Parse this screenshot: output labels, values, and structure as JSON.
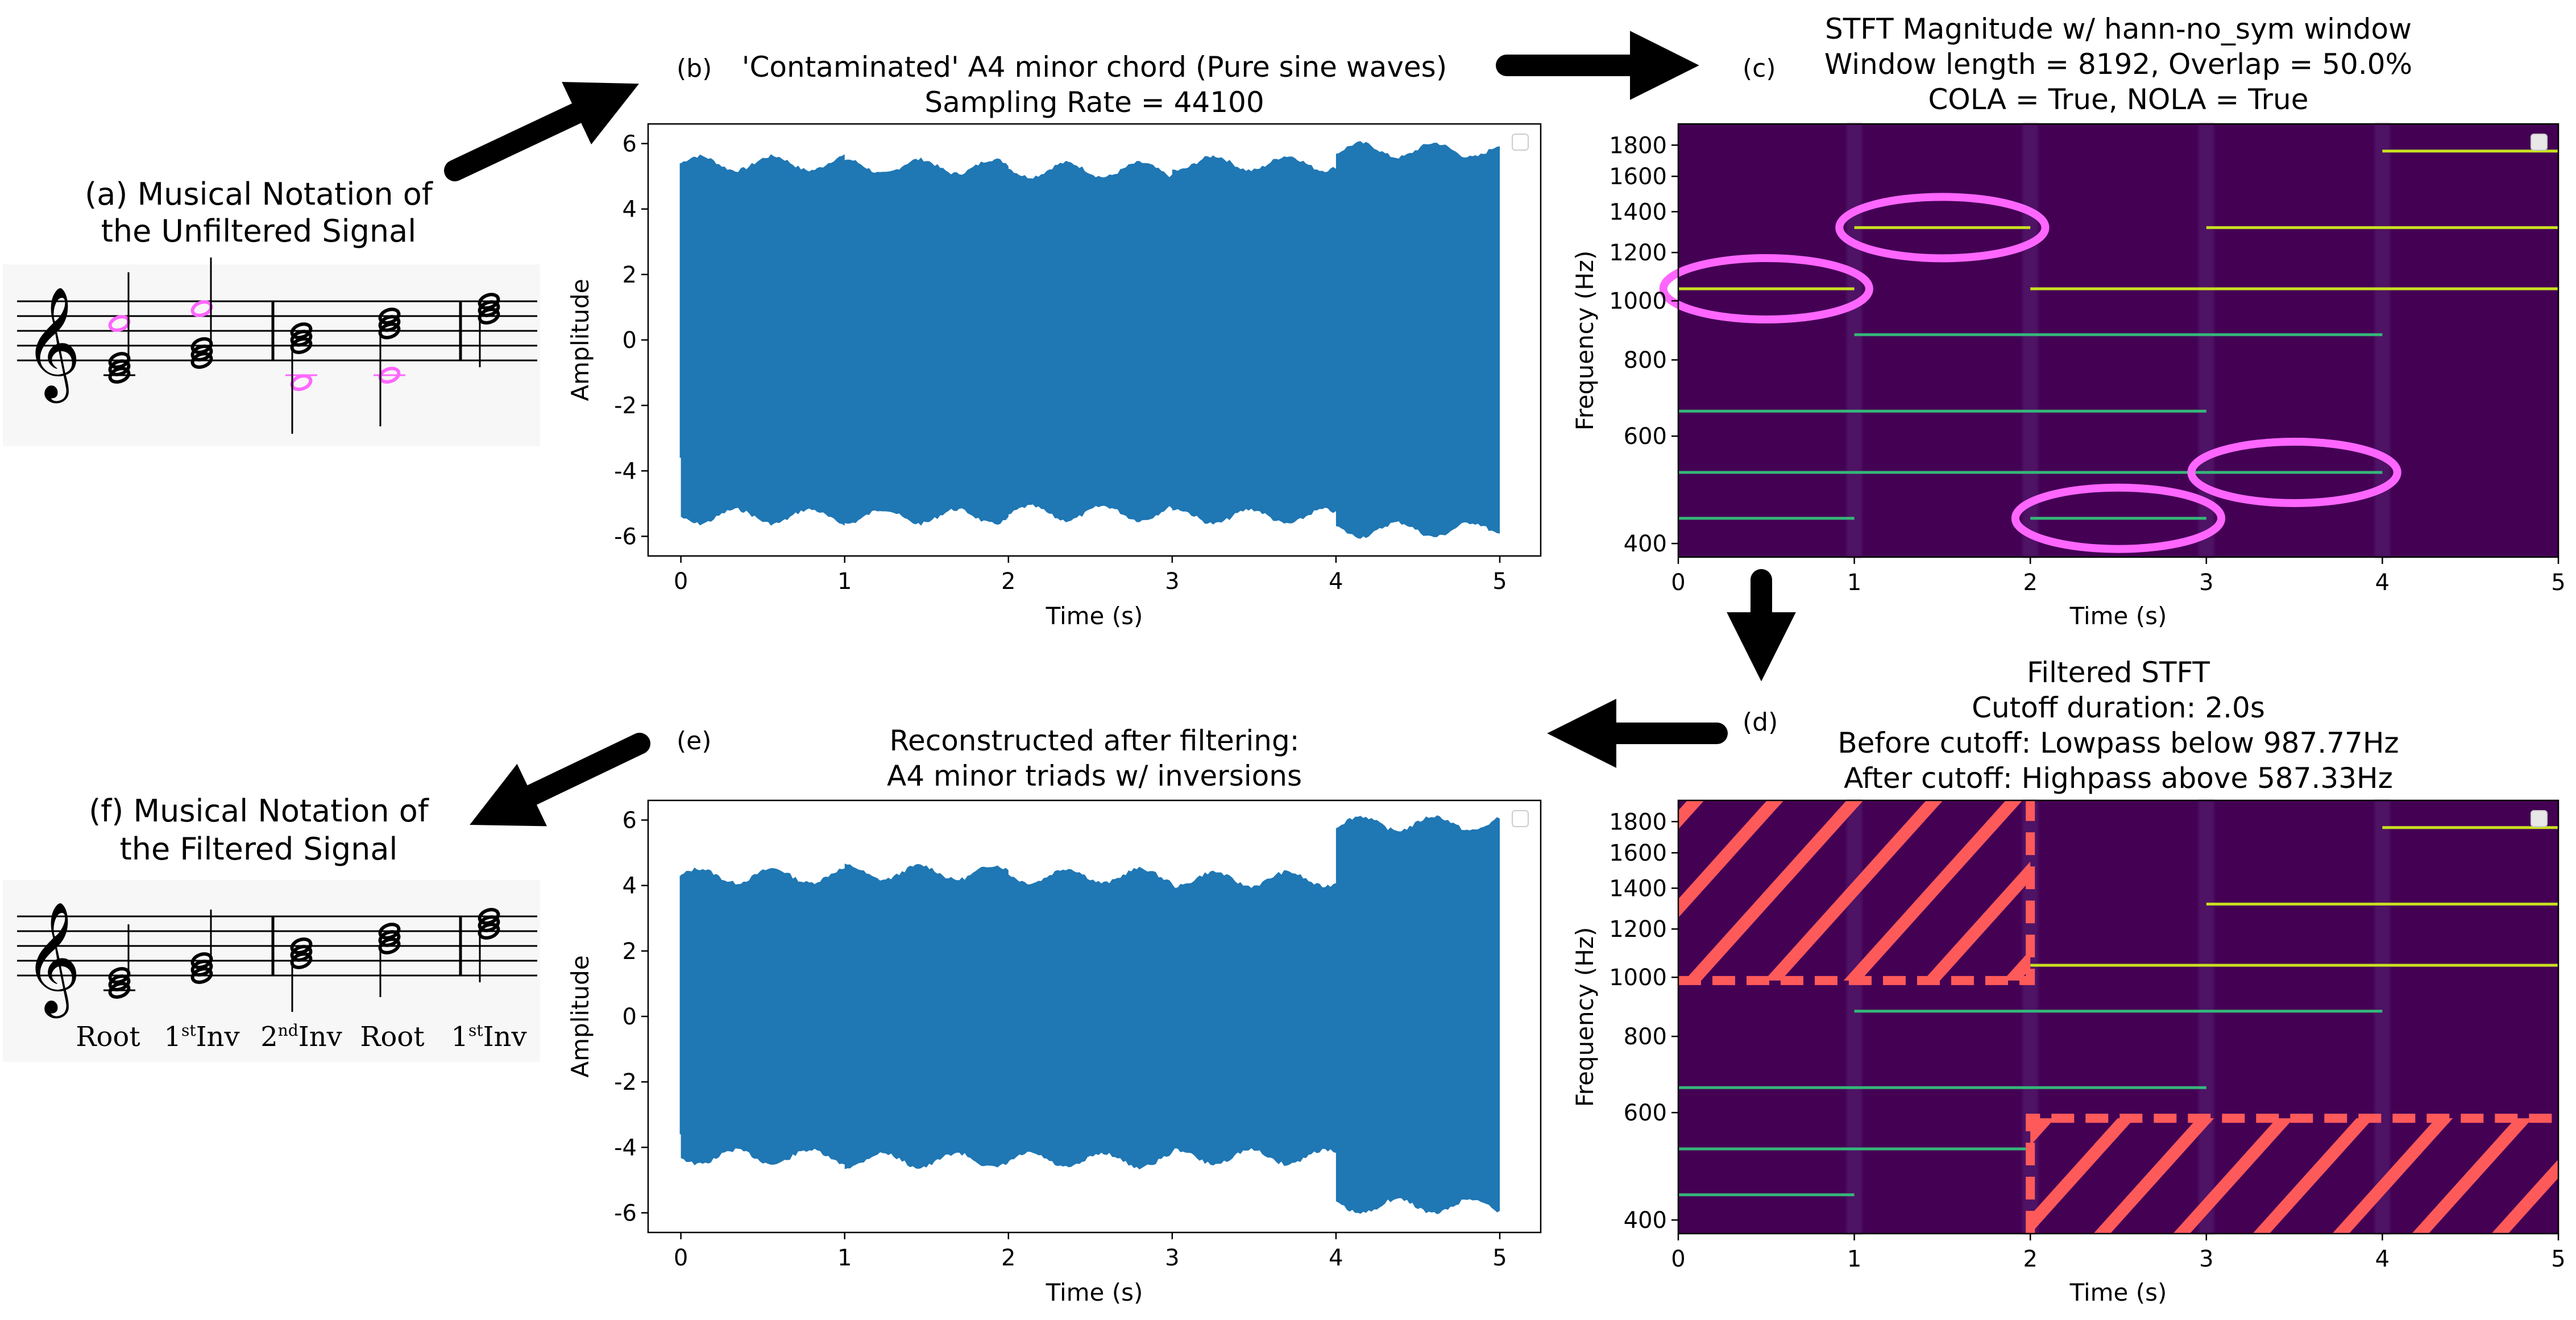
{
  "panels": {
    "a": {
      "label": "(a)",
      "title_lines": [
        "(a) Musical Notation of",
        "the Unfiltered Signal"
      ]
    },
    "b": {
      "label": "(b)"
    },
    "c": {
      "label": "(c)"
    },
    "d": {
      "label": "(d)"
    },
    "e": {
      "label": "(e)"
    },
    "f": {
      "title_lines": [
        "(f) Musical Notation of",
        "the Filtered Signal"
      ],
      "chord_labels": [
        {
          "base": "Root",
          "sup": ""
        },
        {
          "base": "1",
          "sup": "st",
          "tail": "Inv"
        },
        {
          "base": "2",
          "sup": "nd",
          "tail": "Inv"
        },
        {
          "base": "Root",
          "sup": ""
        },
        {
          "base": "1",
          "sup": "st",
          "tail": "Inv"
        }
      ]
    }
  },
  "colors": {
    "waveform": "#1f77b4",
    "spectro_bg": "#440154",
    "highlight": "#ff66ff",
    "filter": "#ff5a5a",
    "note_magenta": "#ff66ff"
  },
  "chart_data": [
    {
      "id": "b",
      "type": "area",
      "title": "'Contaminated' A4 minor chord (Pure sine waves)",
      "subtitle": "Sampling Rate = 44100",
      "xlabel": "Time (s)",
      "ylabel": "Amplitude",
      "xlim": [
        -0.2,
        5.25
      ],
      "ylim": [
        -6.6,
        6.6
      ],
      "xticks": [
        0,
        1,
        2,
        3,
        4,
        5
      ],
      "yticks": [
        -6,
        -4,
        -2,
        0,
        2,
        4,
        6
      ],
      "segments": [
        {
          "t0": 0,
          "t1": 1,
          "upper": 5.4,
          "lower": -5.4
        },
        {
          "t0": 1,
          "t1": 2,
          "upper": 5.3,
          "lower": -5.4
        },
        {
          "t0": 2,
          "t1": 3,
          "upper": 5.2,
          "lower": -5.3
        },
        {
          "t0": 3,
          "t1": 4,
          "upper": 5.4,
          "lower": -5.4
        },
        {
          "t0": 4,
          "t1": 5,
          "upper": 5.8,
          "lower": -5.8
        }
      ]
    },
    {
      "id": "c",
      "type": "heatmap",
      "title": "STFT Magnitude w/ hann-no_sym window",
      "subtitle_lines": [
        "Window length = 8192, Overlap = 50.0%",
        "COLA = True, NOLA = True"
      ],
      "xlabel": "Time (s)",
      "ylabel": "Frequency (Hz)",
      "yscale": "log",
      "xlim": [
        0,
        5
      ],
      "ylim": [
        380,
        1950
      ],
      "xticks": [
        0,
        1,
        2,
        3,
        4,
        5
      ],
      "yticks": [
        400,
        600,
        800,
        1000,
        1200,
        1400,
        1600,
        1800
      ],
      "lines": [
        {
          "freq": 440.0,
          "t0": 0,
          "t1": 1
        },
        {
          "freq": 523.25,
          "t0": 0,
          "t1": 3
        },
        {
          "freq": 659.25,
          "t0": 0,
          "t1": 3
        },
        {
          "freq": 1046.5,
          "t0": 0,
          "t1": 1
        },
        {
          "freq": 880.0,
          "t0": 1,
          "t1": 4
        },
        {
          "freq": 1318.5,
          "t0": 1,
          "t1": 2
        },
        {
          "freq": 440.0,
          "t0": 2,
          "t1": 3
        },
        {
          "freq": 1046.5,
          "t0": 2,
          "t1": 5
        },
        {
          "freq": 523.25,
          "t0": 3,
          "t1": 4
        },
        {
          "freq": 1318.5,
          "t0": 3,
          "t1": 5
        },
        {
          "freq": 1760.0,
          "t0": 4,
          "t1": 5
        }
      ],
      "highlights": [
        {
          "t": 0.5,
          "freq": 1046.5
        },
        {
          "t": 1.5,
          "freq": 1318.5
        },
        {
          "t": 2.5,
          "freq": 440.0
        },
        {
          "t": 3.5,
          "freq": 523.25
        }
      ]
    },
    {
      "id": "d",
      "type": "heatmap",
      "title": "Filtered STFT",
      "subtitle_lines": [
        "Cutoff duration: 2.0s",
        "Before cutoff: Lowpass below 987.77Hz",
        "After cutoff: Highpass above 587.33Hz"
      ],
      "xlabel": "Time (s)",
      "ylabel": "Frequency (Hz)",
      "yscale": "log",
      "xlim": [
        0,
        5
      ],
      "ylim": [
        380,
        1950
      ],
      "xticks": [
        0,
        1,
        2,
        3,
        4,
        5
      ],
      "yticks": [
        400,
        600,
        800,
        1000,
        1200,
        1400,
        1600,
        1800
      ],
      "cutoff_time": 2.0,
      "lowpass_hz": 987.77,
      "highpass_hz": 587.33,
      "lines": [
        {
          "freq": 440.0,
          "t0": 0,
          "t1": 1
        },
        {
          "freq": 523.25,
          "t0": 0,
          "t1": 2
        },
        {
          "freq": 659.25,
          "t0": 0,
          "t1": 3
        },
        {
          "freq": 880.0,
          "t0": 1,
          "t1": 4
        },
        {
          "freq": 1046.5,
          "t0": 2,
          "t1": 5
        },
        {
          "freq": 1318.5,
          "t0": 3,
          "t1": 5
        },
        {
          "freq": 1760.0,
          "t0": 4,
          "t1": 5
        }
      ]
    },
    {
      "id": "e",
      "type": "area",
      "title": "Reconstructed after filtering:",
      "subtitle": "A4 minor triads w/ inversions",
      "xlabel": "Time (s)",
      "ylabel": "Amplitude",
      "xlim": [
        -0.2,
        5.25
      ],
      "ylim": [
        -6.6,
        6.6
      ],
      "xticks": [
        0,
        1,
        2,
        3,
        4,
        5
      ],
      "yticks": [
        -6,
        -4,
        -2,
        0,
        2,
        4,
        6
      ],
      "segments": [
        {
          "t0": 0,
          "t1": 1,
          "upper": 4.3,
          "lower": -4.3
        },
        {
          "t0": 1,
          "t1": 2,
          "upper": 4.4,
          "lower": -4.4
        },
        {
          "t0": 2,
          "t1": 3,
          "upper": 4.3,
          "lower": -4.4
        },
        {
          "t0": 3,
          "t1": 4,
          "upper": 4.2,
          "lower": -4.3
        },
        {
          "t0": 4,
          "t1": 5,
          "upper": 5.9,
          "lower": -5.8
        }
      ]
    }
  ]
}
